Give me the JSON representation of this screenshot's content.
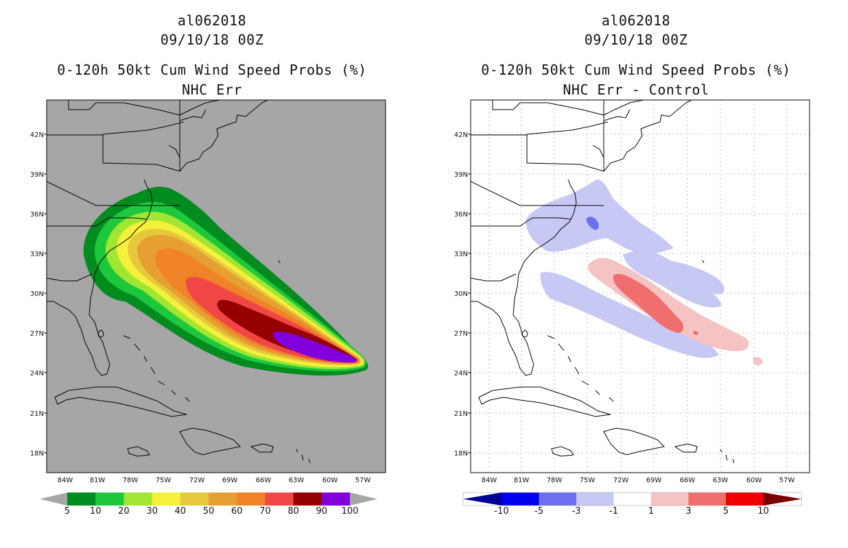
{
  "left": {
    "line1": "al062018",
    "line2": "09/10/18 00Z",
    "line3": "0-120h 50kt Cum Wind Speed Probs (%)",
    "line4": "NHC Err",
    "colorbar": {
      "labels": [
        "5",
        "10",
        "20",
        "30",
        "40",
        "50",
        "60",
        "70",
        "80",
        "90",
        "100"
      ],
      "colors": [
        "#008c1e",
        "#1ec83c",
        "#a0e632",
        "#f5f03c",
        "#e6c83c",
        "#e6a032",
        "#f08228",
        "#f04646",
        "#960000",
        "#8200dc"
      ],
      "end_color": "#a6a6a6"
    }
  },
  "right": {
    "line1": "al062018",
    "line2": "09/10/18 00Z",
    "line3": "0-120h 50kt Cum Wind Speed Probs (%)",
    "line4": "NHC Err - Control",
    "colorbar": {
      "labels": [
        "-10",
        "-5",
        "-3",
        "-1",
        "1",
        "3",
        "5",
        "10"
      ],
      "colors": [
        "#000096",
        "#0000f0",
        "#6e6ef0",
        "#c8c8f5",
        "#ffffff",
        "#f5c3c3",
        "#f06e6e",
        "#f00000",
        "#780000"
      ]
    }
  },
  "map": {
    "lat_labels": [
      "42N",
      "39N",
      "36N",
      "33N",
      "30N",
      "27N",
      "24N",
      "21N",
      "18N"
    ],
    "lon_labels": [
      "84W",
      "81W",
      "78W",
      "75W",
      "72W",
      "69W",
      "66W",
      "63W",
      "60W",
      "57W"
    ],
    "ocean_color_left": "#a6a6a6",
    "ocean_color_right": "#ffffff"
  }
}
